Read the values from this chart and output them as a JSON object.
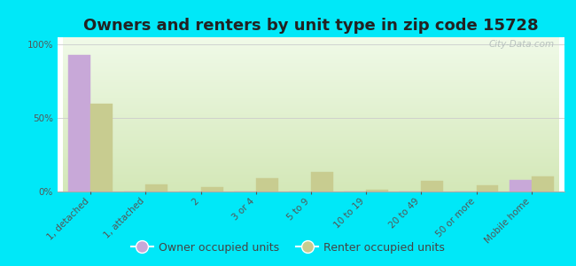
{
  "title": "Owners and renters by unit type in zip code 15728",
  "categories": [
    "1, detached",
    "1, attached",
    "2",
    "3 or 4",
    "5 to 9",
    "10 to 19",
    "20 to 49",
    "50 or more",
    "Mobile home"
  ],
  "owner_values": [
    93,
    0,
    0,
    0,
    0,
    0,
    0,
    0,
    8
  ],
  "renter_values": [
    60,
    5,
    3,
    9,
    13,
    1,
    7,
    4,
    10
  ],
  "owner_color": "#c8a8d8",
  "renter_color": "#c8cc90",
  "background_color": "#00e8f8",
  "ytick_vals": [
    0,
    50,
    100
  ],
  "ylim": [
    0,
    105
  ],
  "bar_width": 0.4,
  "title_fontsize": 13,
  "tick_fontsize": 7.5,
  "legend_fontsize": 9,
  "watermark_text": "City-Data.com",
  "watermark_color": "#b0bab8",
  "grad_top": "#f0fae8",
  "grad_bottom": "#d4e8b8"
}
